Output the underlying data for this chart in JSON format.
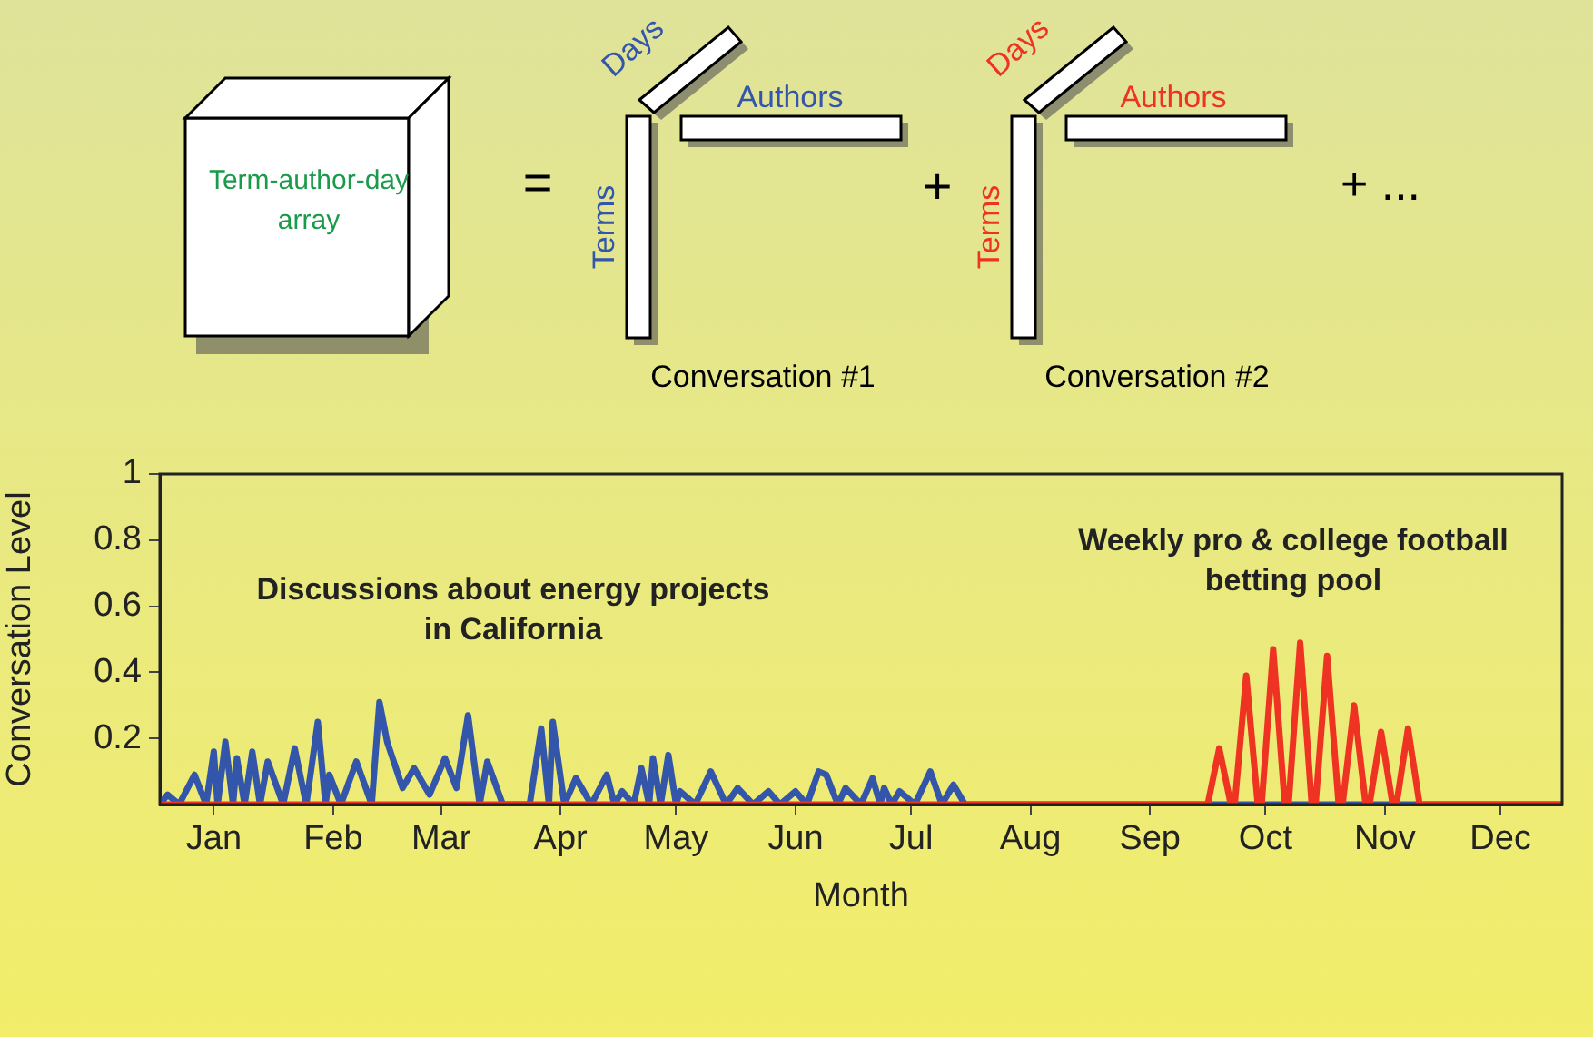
{
  "chart_data": {
    "type": "line",
    "xlabel": "Month",
    "ylabel": "Conversation Level",
    "xlim": [
      "--01-01",
      "--12-31"
    ],
    "ylim": [
      0,
      1
    ],
    "xticks": [
      {
        "value": "--01-15",
        "label": "Jan"
      },
      {
        "value": "--02-15",
        "label": "Feb"
      },
      {
        "value": "--03-15",
        "label": "Mar"
      },
      {
        "value": "--04-15",
        "label": "Apr"
      },
      {
        "value": "--05-15",
        "label": "May"
      },
      {
        "value": "--06-15",
        "label": "Jun"
      },
      {
        "value": "--07-15",
        "label": "Jul"
      },
      {
        "value": "--08-15",
        "label": "Aug"
      },
      {
        "value": "--09-15",
        "label": "Sep"
      },
      {
        "value": "--10-15",
        "label": "Oct"
      },
      {
        "value": "--11-15",
        "label": "Nov"
      },
      {
        "value": "--12-15",
        "label": "Dec"
      }
    ],
    "yticks": [
      0.2,
      0.4,
      0.6,
      0.8,
      1
    ],
    "grid": false,
    "legend": false,
    "marker": "none",
    "line_style": "solid",
    "series": [
      {
        "color": "#ee3322",
        "x": [
          "--01-01",
          "--09-30",
          "--10-03",
          "--10-06",
          "--10-07",
          "--10-10",
          "--10-13",
          "--10-14",
          "--10-17",
          "--10-20",
          "--10-21",
          "--10-24",
          "--10-27",
          "--10-28",
          "--10-31",
          "--11-03",
          "--11-04",
          "--11-07",
          "--11-10",
          "--11-11",
          "--11-14",
          "--11-17",
          "--11-18",
          "--11-21",
          "--11-24",
          "--12-31"
        ],
        "values": [
          0,
          0,
          0.17,
          0,
          0,
          0.39,
          0,
          0,
          0.47,
          0,
          0,
          0.49,
          0,
          0,
          0.45,
          0,
          0,
          0.3,
          0,
          0,
          0.22,
          0,
          0,
          0.23,
          0,
          0
        ]
      },
      {
        "color": "#3355aa",
        "x": [
          "--01-01",
          "--01-03",
          "--01-06",
          "--01-10",
          "--01-13",
          "--01-15",
          "--01-16",
          "--01-18",
          "--01-20",
          "--01-21",
          "--01-23",
          "--01-25",
          "--01-27",
          "--01-29",
          "--02-02",
          "--02-05",
          "--02-08",
          "--02-11",
          "--02-13",
          "--02-14",
          "--02-17",
          "--02-21",
          "--02-25",
          "--02-27",
          "--03-01",
          "--03-05",
          "--03-08",
          "--03-12",
          "--03-16",
          "--03-19",
          "--03-22",
          "--03-25",
          "--03-27",
          "--03-31",
          "--04-07",
          "--04-10",
          "--04-12",
          "--04-13",
          "--04-16",
          "--04-19",
          "--04-23",
          "--04-27",
          "--04-29",
          "--05-01",
          "--05-04",
          "--05-06",
          "--05-08",
          "--05-09",
          "--05-11",
          "--05-13",
          "--05-15",
          "--05-16",
          "--05-20",
          "--05-24",
          "--05-28",
          "--05-31",
          "--06-04",
          "--06-08",
          "--06-11",
          "--06-15",
          "--06-18",
          "--06-21",
          "--06-23",
          "--06-26",
          "--06-28",
          "--07-02",
          "--07-05",
          "--07-07",
          "--07-08",
          "--07-10",
          "--07-12",
          "--07-16",
          "--07-20",
          "--07-23",
          "--07-26",
          "--07-29",
          "--12-31"
        ],
        "values": [
          0,
          0.03,
          0,
          0.09,
          0,
          0.16,
          0,
          0.19,
          0,
          0.14,
          0,
          0.16,
          0,
          0.13,
          0,
          0.17,
          0,
          0.25,
          0,
          0.09,
          0,
          0.13,
          0,
          0.31,
          0.19,
          0.05,
          0.11,
          0.03,
          0.14,
          0.05,
          0.27,
          0,
          0.13,
          0,
          0,
          0.23,
          0,
          0.25,
          0,
          0.08,
          0,
          0.09,
          0,
          0.04,
          0,
          0.11,
          0,
          0.14,
          0,
          0.15,
          0,
          0.04,
          0,
          0.1,
          0,
          0.05,
          0,
          0.04,
          0,
          0.04,
          0,
          0.1,
          0.09,
          0,
          0.05,
          0,
          0.08,
          0,
          0.05,
          0,
          0.04,
          0,
          0.1,
          0,
          0.06,
          0,
          0
        ]
      }
    ],
    "annotations": [
      "Discussions about energy projects in California",
      "Weekly pro & college football betting pool",
      "Term-author-day array",
      "=",
      "Days",
      "Authors",
      "Terms",
      "Conversation #1",
      "+",
      "Days",
      "Authors",
      "Terms",
      "Conversation #2",
      "+ ..."
    ]
  }
}
